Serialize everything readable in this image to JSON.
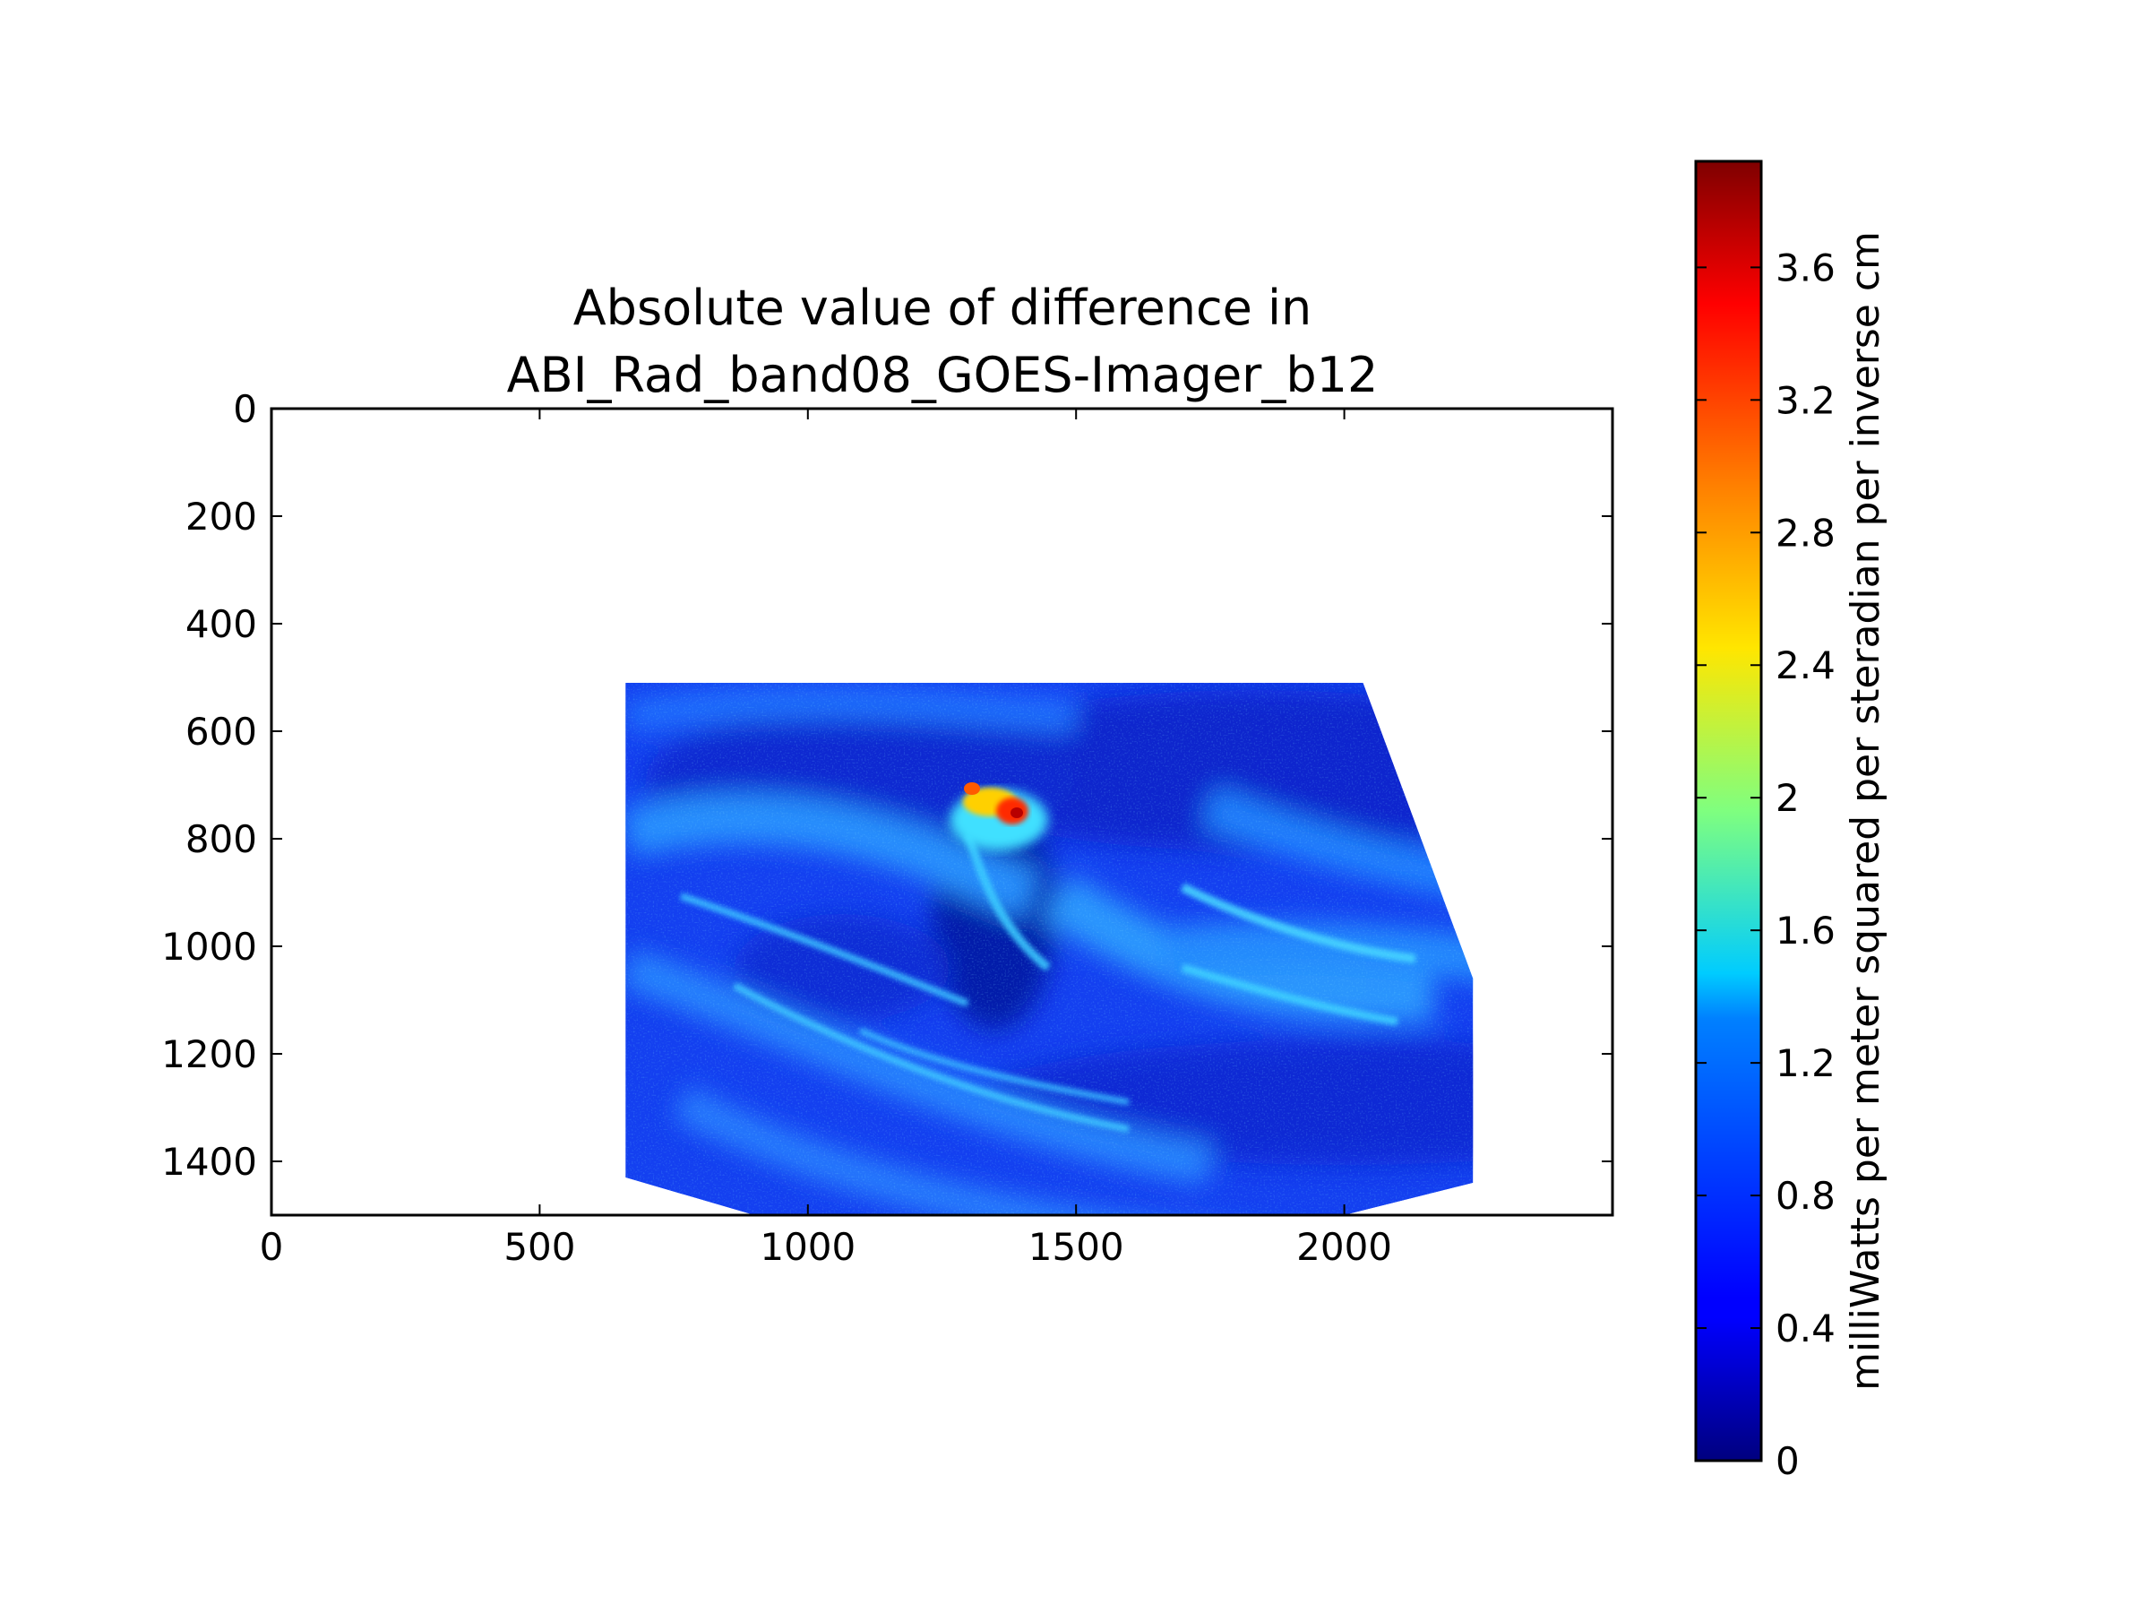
{
  "chart_data": {
    "type": "heatmap",
    "title_lines": [
      "Absolute value of difference in",
      "ABI_Rad_band08_GOES-Imager_b12"
    ],
    "xlim": [
      0,
      2500
    ],
    "ylim": [
      1500,
      0
    ],
    "x_ticks": [
      0,
      500,
      1000,
      1500,
      2000
    ],
    "y_ticks": [
      0,
      200,
      400,
      600,
      800,
      1000,
      1200,
      1400
    ],
    "x_tick_labels": [
      "0",
      "500",
      "1000",
      "1500",
      "2000"
    ],
    "y_tick_labels": [
      "0",
      "200",
      "400",
      "600",
      "800",
      "1000",
      "1200",
      "1400"
    ],
    "colormap": "jet",
    "colorbar": {
      "label": "milliWatts per meter squared per steradian per inverse cm",
      "range": [
        0,
        3.92
      ],
      "ticks": [
        0,
        0.4,
        0.8,
        1.2,
        1.6,
        2,
        2.4,
        2.8,
        3.2,
        3.6
      ],
      "tick_labels": [
        "0",
        "0.4",
        "0.8",
        "1.2",
        "1.6",
        "2",
        "2.4",
        "2.8",
        "3.2",
        "3.6"
      ]
    },
    "data_footprint": [
      [
        660,
        510
      ],
      [
        2035,
        510
      ],
      [
        2240,
        1060
      ],
      [
        2240,
        1440
      ],
      [
        2000,
        1500
      ],
      [
        900,
        1500
      ],
      [
        660,
        1430
      ]
    ],
    "typical_value": 0.6,
    "hotspot": {
      "x": 1340,
      "y": 740,
      "max_value": 3.7
    }
  }
}
